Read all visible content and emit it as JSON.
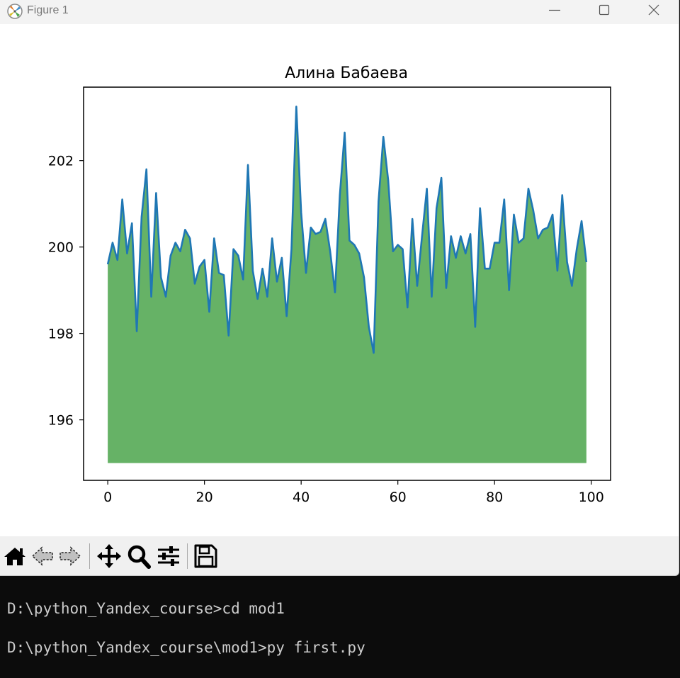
{
  "window": {
    "title": "Figure 1",
    "controls": [
      "minimize",
      "maximize",
      "close"
    ]
  },
  "toolbar": {
    "buttons": [
      "home-icon",
      "back-icon",
      "forward-icon",
      "pan-icon",
      "zoom-icon",
      "configure-icon",
      "save-icon"
    ]
  },
  "terminal": {
    "lines": [
      "D:\\python_Yandex_course>cd mod1",
      "D:\\python_Yandex_course\\mod1>py first.py"
    ]
  },
  "colors": {
    "line": "#1f77b4",
    "fill": "#66b266",
    "terminal_bg": "#0c0c0c",
    "terminal_text": "#cccccc"
  },
  "chart_data": {
    "type": "area",
    "title": "Алина Бабаева",
    "xlabel": "",
    "ylabel": "",
    "xlim": [
      -5,
      104
    ],
    "ylim": [
      194.6,
      203.7
    ],
    "xticks": [
      0,
      20,
      40,
      60,
      80,
      100
    ],
    "yticks": [
      196,
      198,
      200,
      202
    ],
    "fill_baseline": 195,
    "grid": false,
    "x": [
      0,
      1,
      2,
      3,
      4,
      5,
      6,
      7,
      8,
      9,
      10,
      11,
      12,
      13,
      14,
      15,
      16,
      17,
      18,
      19,
      20,
      21,
      22,
      23,
      24,
      25,
      26,
      27,
      28,
      29,
      30,
      31,
      32,
      33,
      34,
      35,
      36,
      37,
      38,
      39,
      40,
      41,
      42,
      43,
      44,
      45,
      46,
      47,
      48,
      49,
      50,
      51,
      52,
      53,
      54,
      55,
      56,
      57,
      58,
      59,
      60,
      61,
      62,
      63,
      64,
      65,
      66,
      67,
      68,
      69,
      70,
      71,
      72,
      73,
      74,
      75,
      76,
      77,
      78,
      79,
      80,
      81,
      82,
      83,
      84,
      85,
      86,
      87,
      88,
      89,
      90,
      91,
      92,
      93,
      94,
      95,
      96,
      97,
      98,
      99
    ],
    "values": [
      199.6,
      200.1,
      199.7,
      201.1,
      199.85,
      200.55,
      198.05,
      200.7,
      201.8,
      198.85,
      201.25,
      199.3,
      198.85,
      199.8,
      200.1,
      199.9,
      200.4,
      200.2,
      199.15,
      199.55,
      199.7,
      198.5,
      200.2,
      199.4,
      199.35,
      197.95,
      199.95,
      199.8,
      199.25,
      201.9,
      199.45,
      198.8,
      199.5,
      198.85,
      200.2,
      199.2,
      199.75,
      198.4,
      199.95,
      203.25,
      200.8,
      199.4,
      200.45,
      200.3,
      200.35,
      200.65,
      199.9,
      198.95,
      201.2,
      202.65,
      200.15,
      200.05,
      199.85,
      199.3,
      198.15,
      197.55,
      201.05,
      202.55,
      201.55,
      199.9,
      200.05,
      199.95,
      198.6,
      200.65,
      199.1,
      200.25,
      201.35,
      198.85,
      200.9,
      201.6,
      199.05,
      200.25,
      199.75,
      200.25,
      199.85,
      200.3,
      198.15,
      200.9,
      199.5,
      199.5,
      200.1,
      200.1,
      201.1,
      199.0,
      200.75,
      200.1,
      200.2,
      201.35,
      200.85,
      200.2,
      200.4,
      200.45,
      200.75,
      199.45,
      201.2,
      199.65,
      199.1,
      199.95,
      200.6,
      199.65
    ]
  }
}
